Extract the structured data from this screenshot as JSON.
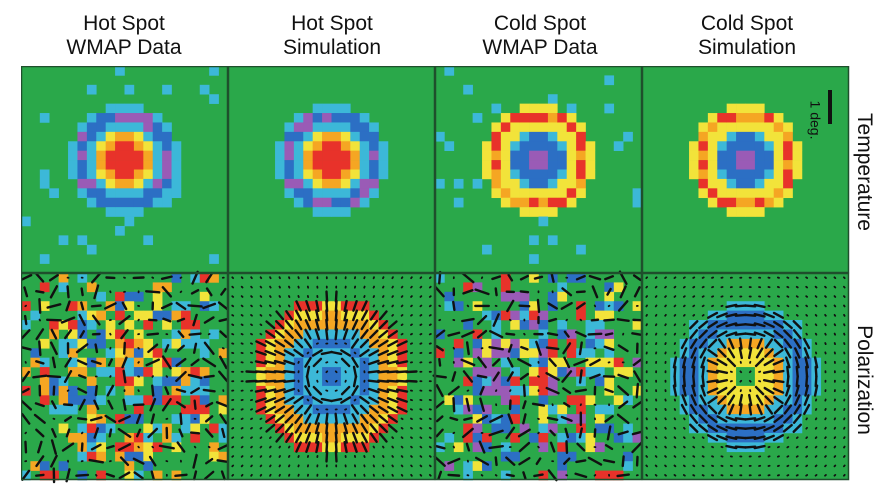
{
  "columns": [
    {
      "line1": "Hot Spot",
      "line2": "WMAP Data"
    },
    {
      "line1": "Hot Spot",
      "line2": "Simulation"
    },
    {
      "line1": "Cold Spot",
      "line2": "WMAP Data"
    },
    {
      "line1": "Cold Spot",
      "line2": "Simulation"
    }
  ],
  "rows": [
    {
      "label": "Temperature"
    },
    {
      "label": "Polarization"
    }
  ],
  "scale_label": "1 deg.",
  "colors": {
    "background": "#2aa84a",
    "cyan": "#3cb8d8",
    "blue": "#2c6fc4",
    "violet": "#9a5bb6",
    "yellow": "#f2e33a",
    "orange": "#f5a623",
    "red": "#e8322a",
    "stick": "#111111",
    "border": "#1f4f2c"
  }
}
